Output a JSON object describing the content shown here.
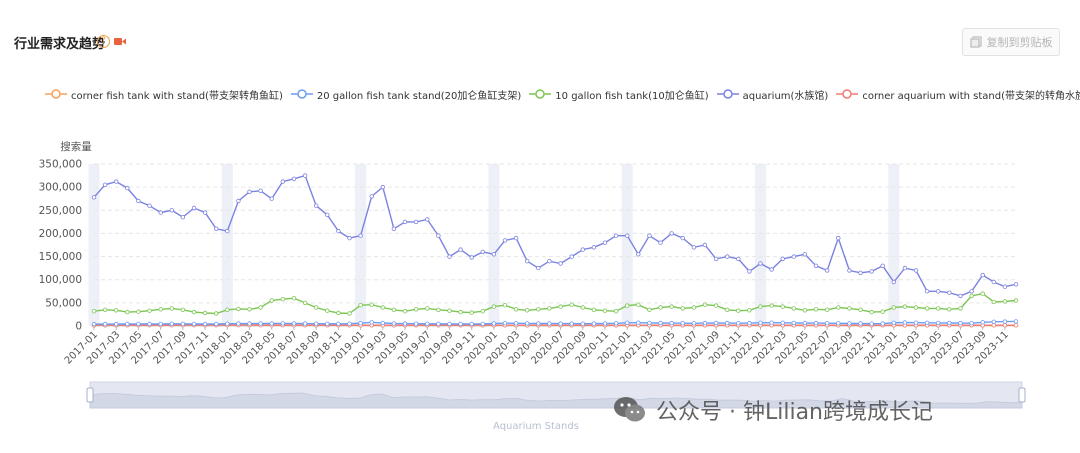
{
  "header": {
    "title": "行业需求及趋势",
    "help_glyph": "?",
    "video_icon": "video-camera-icon"
  },
  "toolbar": {
    "copy_label": "复制到剪贴板",
    "copy_icon": "copy-icon"
  },
  "watermark": {
    "text": "公众号 · 钟Lilian跨境成长记",
    "icon": "wechat-icon"
  },
  "chart_data": {
    "type": "line",
    "ylabel": "搜索量",
    "ylim": [
      0,
      350000
    ],
    "yticks": [
      0,
      50000,
      100000,
      150000,
      200000,
      250000,
      300000,
      350000
    ],
    "ytick_labels": [
      "0",
      "50,000",
      "100,000",
      "150,000",
      "200,000",
      "250,000",
      "300,000",
      "350,000"
    ],
    "grid": "horizontal dashed",
    "legend_position": "top",
    "zoom_slider_label": "Aquarium Stands",
    "x_tick_step": 2,
    "x": [
      "2017-01",
      "2017-02",
      "2017-03",
      "2017-04",
      "2017-05",
      "2017-06",
      "2017-07",
      "2017-08",
      "2017-09",
      "2017-10",
      "2017-11",
      "2017-12",
      "2018-01",
      "2018-02",
      "2018-03",
      "2018-04",
      "2018-05",
      "2018-06",
      "2018-07",
      "2018-08",
      "2018-09",
      "2018-10",
      "2018-11",
      "2018-12",
      "2019-01",
      "2019-02",
      "2019-03",
      "2019-04",
      "2019-05",
      "2019-06",
      "2019-07",
      "2019-08",
      "2019-09",
      "2019-10",
      "2019-11",
      "2019-12",
      "2020-01",
      "2020-02",
      "2020-03",
      "2020-04",
      "2020-05",
      "2020-06",
      "2020-07",
      "2020-08",
      "2020-09",
      "2020-10",
      "2020-11",
      "2020-12",
      "2021-01",
      "2021-02",
      "2021-03",
      "2021-04",
      "2021-05",
      "2021-06",
      "2021-07",
      "2021-08",
      "2021-09",
      "2021-10",
      "2021-11",
      "2021-12",
      "2022-01",
      "2022-02",
      "2022-03",
      "2022-04",
      "2022-05",
      "2022-06",
      "2022-07",
      "2022-08",
      "2022-09",
      "2022-10",
      "2022-11",
      "2022-12",
      "2023-01",
      "2023-02",
      "2023-03",
      "2023-04",
      "2023-05",
      "2023-06",
      "2023-07",
      "2023-08",
      "2023-09",
      "2023-10",
      "2023-11",
      "2023-12"
    ],
    "highlight_months": [
      "2017-01",
      "2018-01",
      "2019-01",
      "2020-01",
      "2021-01",
      "2022-01",
      "2023-01"
    ],
    "series": [
      {
        "name": "corner fish tank with stand(带支架转角鱼缸)",
        "color": "#f5a15a",
        "values": [
          1500,
          1600,
          1700,
          1800,
          1900,
          2000,
          2100,
          2200,
          2300,
          2400,
          2500,
          2600,
          2700,
          2600,
          2500,
          2400,
          2300,
          2200,
          2100,
          2000,
          1900,
          1800,
          1700,
          1600,
          1500,
          1500,
          1500,
          1500,
          1500,
          1500,
          1500,
          1500,
          1500,
          1500,
          1500,
          1500,
          1500,
          1500,
          1500,
          1500,
          1500,
          1500,
          1500,
          1500,
          1500,
          1500,
          1500,
          1500,
          1500,
          1500,
          1500,
          1500,
          1500,
          1500,
          1500,
          1500,
          1500,
          1500,
          1500,
          1500,
          1500,
          1500,
          1500,
          1500,
          1500,
          1500,
          1500,
          1500,
          1500,
          1500,
          1500,
          1500,
          1500,
          1500,
          1500,
          1500,
          1500,
          1500,
          1500,
          1500,
          1500,
          1500,
          1500,
          1500
        ]
      },
      {
        "name": "20 gallon fish tank stand(20加仑鱼缸支架)",
        "color": "#6e9cf0",
        "values": [
          4000,
          4200,
          4100,
          4300,
          4500,
          4400,
          4600,
          4800,
          4700,
          4500,
          4300,
          4400,
          5000,
          5200,
          5100,
          5300,
          5500,
          5600,
          5400,
          5200,
          5000,
          4800,
          4700,
          4900,
          6000,
          8000,
          6500,
          5500,
          5200,
          5000,
          4800,
          4700,
          4600,
          4500,
          4400,
          4600,
          5500,
          6000,
          5800,
          5600,
          5400,
          5300,
          5200,
          5100,
          5000,
          5200,
          5500,
          5800,
          7000,
          7200,
          6800,
          6500,
          6200,
          6000,
          5800,
          6200,
          6500,
          6300,
          6000,
          6200,
          7000,
          7200,
          7000,
          6800,
          6500,
          6200,
          6000,
          5800,
          5500,
          5300,
          5000,
          5200,
          7000,
          7500,
          7200,
          7000,
          6800,
          6500,
          6200,
          6000,
          8000,
          9000,
          9500,
          10000
        ]
      },
      {
        "name": "10 gallon fish tank(10加仑鱼缸)",
        "color": "#7cc653",
        "values": [
          32000,
          35000,
          34000,
          30000,
          31000,
          33000,
          36000,
          38000,
          35000,
          30000,
          28000,
          27000,
          35000,
          37000,
          36000,
          40000,
          55000,
          58000,
          60000,
          50000,
          40000,
          33000,
          28000,
          27000,
          45000,
          46000,
          40000,
          35000,
          32000,
          36000,
          38000,
          35000,
          33000,
          30000,
          29000,
          32000,
          42000,
          45000,
          36000,
          34000,
          36000,
          38000,
          42000,
          46000,
          40000,
          35000,
          33000,
          32000,
          44000,
          46000,
          35000,
          40000,
          42000,
          38000,
          40000,
          46000,
          44000,
          35000,
          33000,
          34000,
          42000,
          44000,
          42000,
          38000,
          34000,
          36000,
          35000,
          40000,
          38000,
          35000,
          30000,
          31000,
          40000,
          42000,
          40000,
          38000,
          38000,
          36000,
          38000,
          65000,
          70000,
          52000,
          53000,
          55000
        ]
      },
      {
        "name": "aquarium(水族馆)",
        "color": "#7b82e0",
        "values": [
          278000,
          305000,
          312000,
          298000,
          270000,
          260000,
          245000,
          250000,
          235000,
          255000,
          245000,
          210000,
          205000,
          270000,
          290000,
          292000,
          275000,
          312000,
          318000,
          325000,
          260000,
          240000,
          205000,
          190000,
          195000,
          280000,
          300000,
          210000,
          225000,
          225000,
          230000,
          195000,
          150000,
          165000,
          148000,
          160000,
          155000,
          185000,
          190000,
          140000,
          125000,
          140000,
          135000,
          150000,
          165000,
          170000,
          180000,
          195000,
          195000,
          155000,
          195000,
          180000,
          200000,
          190000,
          170000,
          175000,
          145000,
          150000,
          145000,
          118000,
          135000,
          122000,
          145000,
          150000,
          155000,
          130000,
          120000,
          190000,
          120000,
          115000,
          118000,
          130000,
          95000,
          125000,
          120000,
          75000,
          75000,
          72000,
          65000,
          75000,
          110000,
          95000,
          85000,
          90000
        ]
      },
      {
        "name": "corner aquarium with stand(带支架的转角水族箱)",
        "color": "#ef7b73",
        "values": [
          1800,
          1800,
          1800,
          1800,
          1800,
          1800,
          1800,
          1800,
          1800,
          1800,
          1800,
          1800,
          1800,
          1800,
          1800,
          1800,
          1800,
          1800,
          1800,
          1800,
          1800,
          1800,
          1800,
          1800,
          1800,
          1800,
          1800,
          1800,
          1800,
          1800,
          1800,
          1800,
          1800,
          1800,
          1800,
          1800,
          1800,
          1800,
          1800,
          1800,
          1800,
          1800,
          1800,
          1800,
          1800,
          1800,
          1800,
          1800,
          1800,
          1800,
          1800,
          1800,
          1800,
          1800,
          1800,
          1800,
          1800,
          1800,
          1800,
          1800,
          1800,
          1800,
          1800,
          1800,
          1800,
          1800,
          1800,
          1800,
          1800,
          1800,
          1800,
          1800,
          1800,
          1800,
          1800,
          1800,
          1800,
          1800,
          1800,
          1800,
          1800,
          1800,
          1800,
          1800
        ]
      }
    ]
  }
}
